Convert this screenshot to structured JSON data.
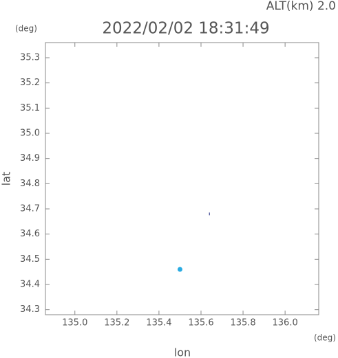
{
  "chart_data": {
    "type": "scatter",
    "title": "2022/02/02 18:31:49",
    "annotation": "ALT(km) 2.0",
    "x_label": "lon",
    "y_label": "lat",
    "x_unit": "(deg)",
    "y_unit": "(deg)",
    "xlim": [
      134.86,
      136.16
    ],
    "xticks": [
      {
        "value": 135.0,
        "label": "135.0"
      },
      {
        "value": 135.2,
        "label": "135.2"
      },
      {
        "value": 135.4,
        "label": "135.4"
      },
      {
        "value": 135.6,
        "label": "135.6"
      },
      {
        "value": 135.8,
        "label": "135.8"
      },
      {
        "value": 136.0,
        "label": "136.0"
      }
    ],
    "ylim": [
      34.28,
      35.36
    ],
    "yticks": [
      {
        "value": 34.3,
        "label": "34.3"
      },
      {
        "value": 34.4,
        "label": "34.4"
      },
      {
        "value": 34.5,
        "label": "34.5"
      },
      {
        "value": 34.6,
        "label": "34.6"
      },
      {
        "value": 34.7,
        "label": "34.7"
      },
      {
        "value": 34.8,
        "label": "34.8"
      },
      {
        "value": 34.9,
        "label": "34.9"
      },
      {
        "value": 35.0,
        "label": "35.0"
      },
      {
        "value": 35.1,
        "label": "35.1"
      },
      {
        "value": 35.2,
        "label": "35.2"
      },
      {
        "value": 35.3,
        "label": "35.3"
      }
    ],
    "series": [
      {
        "color": "#29abe2",
        "marker": "circle",
        "x": [
          135.5
        ],
        "values": [
          34.46
        ]
      },
      {
        "color": "#1a237e",
        "marker": "tick",
        "x": [
          135.64
        ],
        "values": [
          34.68
        ]
      }
    ]
  }
}
